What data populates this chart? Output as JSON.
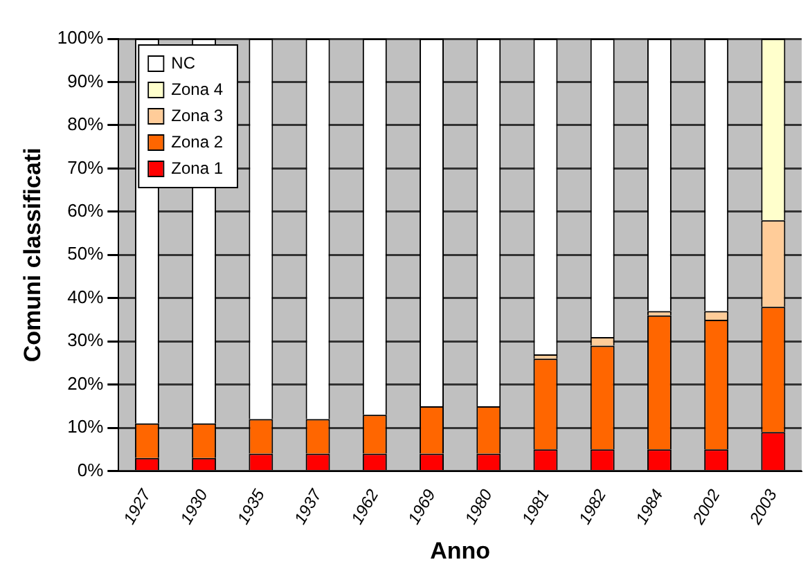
{
  "chart_data": {
    "type": "bar",
    "stacked": true,
    "xlabel": "Anno",
    "ylabel": "Comuni classificati",
    "categories": [
      "1927",
      "1930",
      "1935",
      "1937",
      "1962",
      "1969",
      "1980",
      "1981",
      "1982",
      "1984",
      "2002",
      "2003"
    ],
    "series": [
      {
        "name": "Zona 1",
        "color": "#ff0000",
        "values": [
          3,
          3,
          4,
          4,
          4,
          4,
          4,
          5,
          5,
          5,
          5,
          9
        ]
      },
      {
        "name": "Zona 2",
        "color": "#ff6600",
        "values": [
          8,
          8,
          8,
          8,
          9,
          11,
          11,
          21,
          24,
          31,
          30,
          29
        ]
      },
      {
        "name": "Zona 3",
        "color": "#ffcc99",
        "values": [
          0,
          0,
          0,
          0,
          0,
          0,
          0,
          1,
          2,
          1,
          2,
          20
        ]
      },
      {
        "name": "Zona 4",
        "color": "#ffffcc",
        "values": [
          0,
          0,
          0,
          0,
          0,
          0,
          0,
          0,
          0,
          0,
          0,
          42
        ]
      },
      {
        "name": "NC",
        "color": "#ffffff",
        "values": [
          89,
          89,
          88,
          88,
          87,
          85,
          85,
          73,
          69,
          63,
          63,
          0
        ]
      }
    ],
    "ylim": [
      0,
      100
    ],
    "yticks": [
      {
        "value": 0,
        "label": "0%"
      },
      {
        "value": 10,
        "label": "10%"
      },
      {
        "value": 20,
        "label": "20%"
      },
      {
        "value": 30,
        "label": "30%"
      },
      {
        "value": 40,
        "label": "40%"
      },
      {
        "value": 50,
        "label": "50%"
      },
      {
        "value": 60,
        "label": "60%"
      },
      {
        "value": 70,
        "label": "70%"
      },
      {
        "value": 80,
        "label": "80%"
      },
      {
        "value": 90,
        "label": "90%"
      },
      {
        "value": 100,
        "label": "100%"
      }
    ],
    "grid": "y",
    "legend": "top left"
  }
}
